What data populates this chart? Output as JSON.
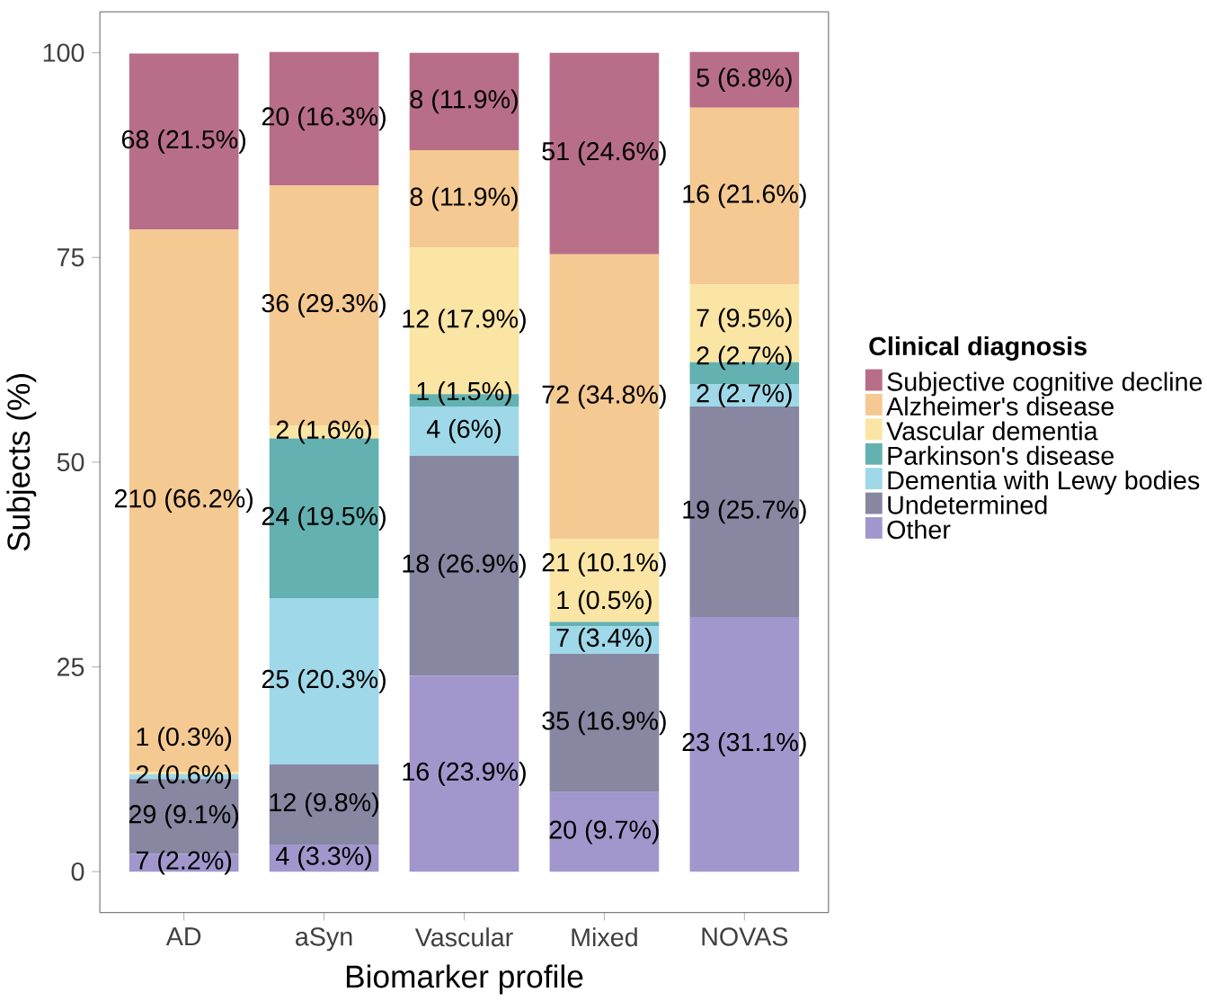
{
  "chart_data": {
    "type": "bar",
    "stacked": true,
    "xlabel": "Biomarker profile",
    "ylabel": "Subjects (%)",
    "legend_title": "Clinical diagnosis",
    "legend": "right",
    "categories": [
      "AD",
      "aSyn",
      "Vascular",
      "Mixed",
      "NOVAS"
    ],
    "ylim": [
      -5,
      105
    ],
    "yticks": [
      0,
      25,
      50,
      75,
      100
    ],
    "series": [
      {
        "name": "Other",
        "color": "#a197cc",
        "values": [
          2.2,
          3.3,
          23.9,
          9.7,
          31.1
        ],
        "value_labels": [
          "7 (2.2%)",
          "4 (3.3%)",
          "16 (23.9%)",
          "20 (9.7%)",
          "23 (31.1%)"
        ]
      },
      {
        "name": "Undetermined",
        "color": "#8787a2",
        "values": [
          9.1,
          9.8,
          26.9,
          16.9,
          25.7
        ],
        "value_labels": [
          "29 (9.1%)",
          "12 (9.8%)",
          "18 (26.9%)",
          "35 (16.9%)",
          "19 (25.7%)"
        ]
      },
      {
        "name": "Dementia with Lewy bodies",
        "color": "#9fd8e8",
        "values": [
          0.6,
          20.3,
          6,
          3.4,
          2.7
        ],
        "value_labels": [
          "2 (0.6%)",
          "25 (20.3%)",
          "4 (6%)",
          "7 (3.4%)",
          "2 (2.7%)"
        ]
      },
      {
        "name": "Parkinson's disease",
        "color": "#63b1b0",
        "values": [
          null,
          19.5,
          1.5,
          0.5,
          2.7
        ],
        "value_labels": [
          null,
          "24 (19.5%)",
          "1 (1.5%)",
          "1 (0.5%)",
          "2 (2.7%)"
        ]
      },
      {
        "name": "Vascular dementia",
        "color": "#fbe5a4",
        "values": [
          0.3,
          1.6,
          17.9,
          10.1,
          9.5
        ],
        "value_labels": [
          "1 (0.3%)",
          "2 (1.6%)",
          "12 (17.9%)",
          "21 (10.1%)",
          "7 (9.5%)"
        ]
      },
      {
        "name": "Alzheimer's disease",
        "color": "#f5c992",
        "values": [
          66.2,
          29.3,
          11.9,
          34.8,
          21.6
        ],
        "value_labels": [
          "210 (66.2%)",
          "36 (29.3%)",
          "8 (11.9%)",
          "72 (34.8%)",
          "16 (21.6%)"
        ]
      },
      {
        "name": "Subjective cognitive decline",
        "color": "#b86e89",
        "values": [
          21.5,
          16.3,
          11.9,
          24.6,
          6.8
        ],
        "value_labels": [
          "68 (21.5%)",
          "20 (16.3%)",
          "8 (11.9%)",
          "51 (24.6%)",
          "5 (6.8%)"
        ]
      }
    ]
  }
}
